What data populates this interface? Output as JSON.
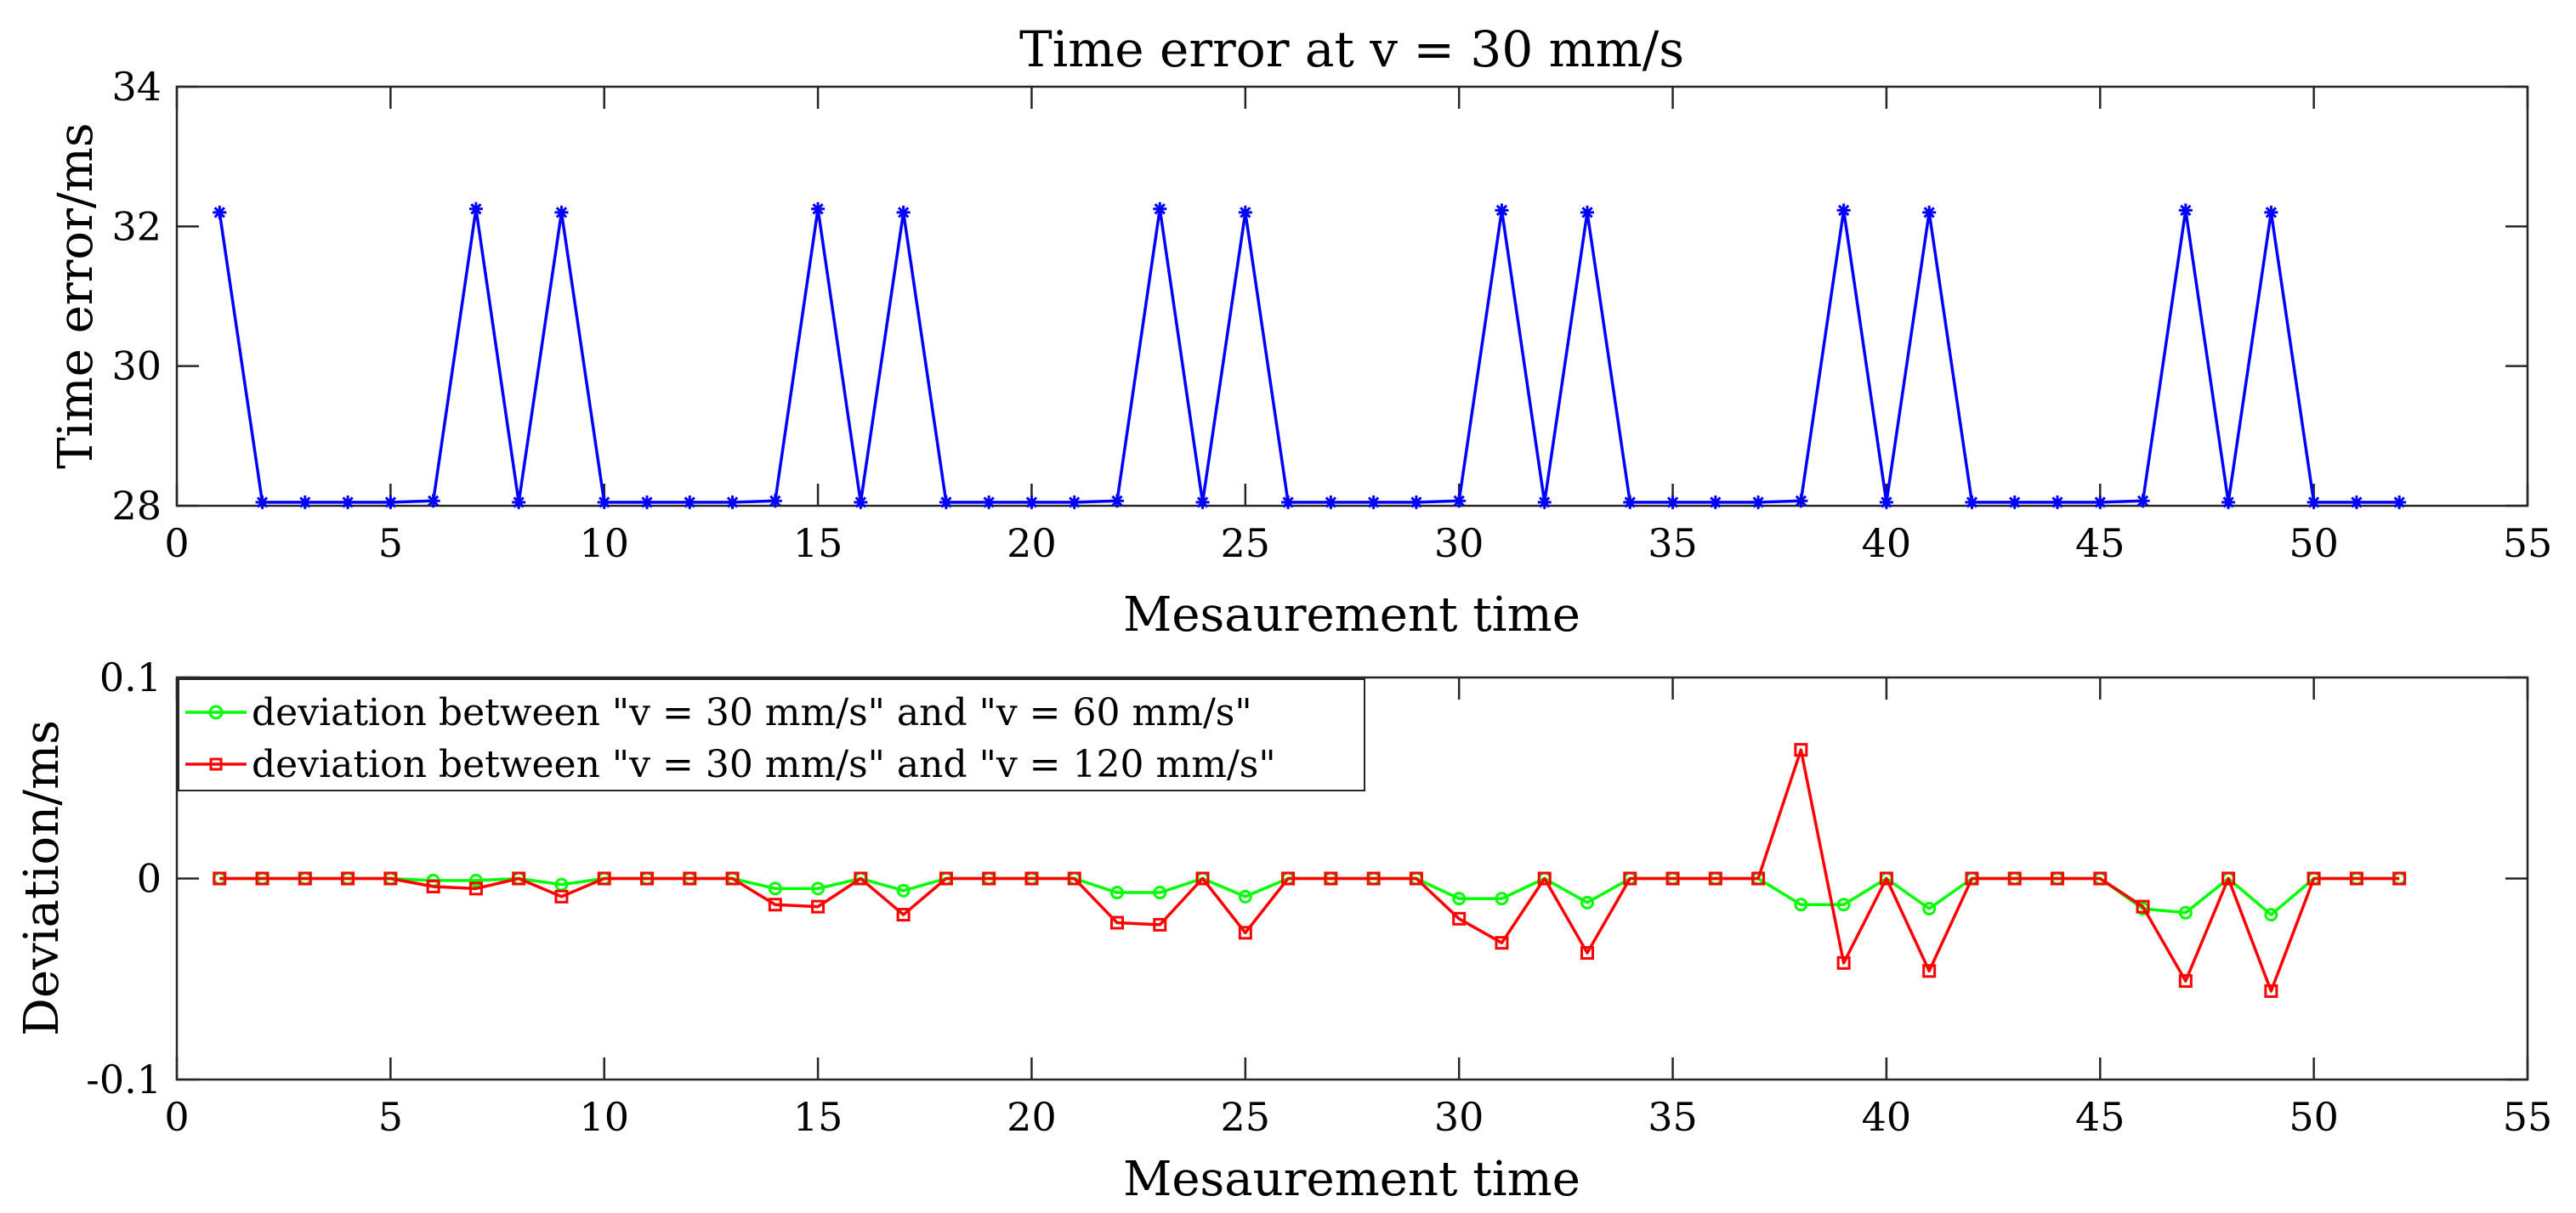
{
  "chart_data": [
    {
      "type": "line",
      "title": "Time error at v = 30 mm/s",
      "xlabel": "Mesaurement time",
      "ylabel": "Time error/ms",
      "xlim": [
        0,
        55
      ],
      "ylim": [
        28,
        34
      ],
      "xticks": [
        0,
        5,
        10,
        15,
        20,
        25,
        30,
        35,
        40,
        45,
        50,
        55
      ],
      "yticks": [
        28,
        30,
        32,
        34
      ],
      "xtick_labels": [
        "0",
        "5",
        "10",
        "15",
        "20",
        "25",
        "30",
        "35",
        "40",
        "45",
        "50",
        "55"
      ],
      "ytick_labels": [
        "28",
        "30",
        "32",
        "34"
      ],
      "x": [
        1,
        2,
        3,
        4,
        5,
        6,
        7,
        8,
        9,
        10,
        11,
        12,
        13,
        14,
        15,
        16,
        17,
        18,
        19,
        20,
        21,
        22,
        23,
        24,
        25,
        26,
        27,
        28,
        29,
        30,
        31,
        32,
        33,
        34,
        35,
        36,
        37,
        38,
        39,
        40,
        41,
        42,
        43,
        44,
        45,
        46,
        47,
        48,
        49,
        50,
        51,
        52
      ],
      "series": [
        {
          "name": "time error",
          "color": "#0000ff",
          "marker": "asterisk",
          "values": [
            32.2,
            28.05,
            28.05,
            28.05,
            28.05,
            28.07,
            32.25,
            28.05,
            32.2,
            28.05,
            28.05,
            28.05,
            28.05,
            28.07,
            32.25,
            28.05,
            32.2,
            28.05,
            28.05,
            28.05,
            28.05,
            28.07,
            32.25,
            28.05,
            32.2,
            28.05,
            28.05,
            28.05,
            28.05,
            28.07,
            32.23,
            28.05,
            32.2,
            28.05,
            28.05,
            28.05,
            28.05,
            28.07,
            32.23,
            28.05,
            32.2,
            28.05,
            28.05,
            28.05,
            28.05,
            28.07,
            32.23,
            28.05,
            32.2,
            28.05,
            28.05,
            28.05
          ]
        }
      ],
      "legend": null,
      "grid": false
    },
    {
      "type": "line",
      "title": "",
      "xlabel": "Mesaurement time",
      "ylabel": "Deviation/ms",
      "xlim": [
        0,
        55
      ],
      "ylim": [
        -0.1,
        0.1
      ],
      "xticks": [
        0,
        5,
        10,
        15,
        20,
        25,
        30,
        35,
        40,
        45,
        50,
        55
      ],
      "yticks": [
        -0.1,
        0,
        0.1
      ],
      "xtick_labels": [
        "0",
        "5",
        "10",
        "15",
        "20",
        "25",
        "30",
        "35",
        "40",
        "45",
        "50",
        "55"
      ],
      "ytick_labels": [
        "-0.1",
        "0",
        "0.1"
      ],
      "x": [
        1,
        2,
        3,
        4,
        5,
        6,
        7,
        8,
        9,
        10,
        11,
        12,
        13,
        14,
        15,
        16,
        17,
        18,
        19,
        20,
        21,
        22,
        23,
        24,
        25,
        26,
        27,
        28,
        29,
        30,
        31,
        32,
        33,
        34,
        35,
        36,
        37,
        38,
        39,
        40,
        41,
        42,
        43,
        44,
        45,
        46,
        47,
        48,
        49,
        50,
        51,
        52
      ],
      "series": [
        {
          "name": "deviation between \"v = 30 mm/s\" and \"v = 60 mm/s\"",
          "color": "#00ff00",
          "marker": "circle",
          "values": [
            0,
            0,
            0,
            0,
            0,
            -0.001,
            -0.001,
            0,
            -0.003,
            0,
            0,
            0,
            0,
            -0.005,
            -0.005,
            0,
            -0.006,
            0,
            0,
            0,
            0,
            -0.007,
            -0.007,
            0,
            -0.009,
            0,
            0,
            0,
            0,
            -0.01,
            -0.01,
            0,
            -0.012,
            0,
            0,
            0,
            0,
            -0.013,
            -0.013,
            0,
            -0.015,
            0,
            0,
            0,
            0,
            -0.015,
            -0.017,
            0,
            -0.018,
            0,
            0,
            0
          ]
        },
        {
          "name": "deviation between \"v = 30 mm/s\" and \"v = 120 mm/s\"",
          "color": "#ff0000",
          "marker": "square",
          "values": [
            0,
            0,
            0,
            0,
            0,
            -0.004,
            -0.005,
            0,
            -0.009,
            0,
            0,
            0,
            0,
            -0.013,
            -0.014,
            0,
            -0.018,
            0,
            0,
            0,
            0,
            -0.022,
            -0.023,
            0,
            -0.027,
            0,
            0,
            0,
            0,
            -0.02,
            -0.032,
            0,
            -0.037,
            0,
            0,
            0,
            0,
            0.064,
            -0.042,
            0,
            -0.046,
            0,
            0,
            0,
            0,
            -0.014,
            -0.051,
            0,
            -0.056,
            0,
            0,
            0
          ]
        }
      ],
      "legend": "top-left",
      "grid": false
    }
  ]
}
